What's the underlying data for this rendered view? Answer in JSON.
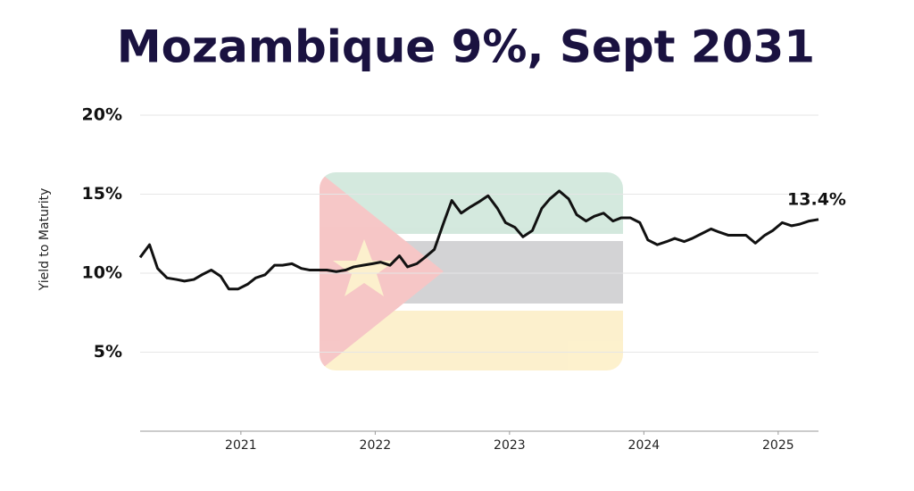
{
  "chart_data": {
    "type": "line",
    "title": "Mozambique 9%, Sept 2031",
    "y_label": "Yield to Maturity",
    "x": [
      2020.25,
      2020.32,
      2020.38,
      2020.45,
      2020.52,
      2020.58,
      2020.65,
      2020.71,
      2020.78,
      2020.85,
      2020.91,
      2020.98,
      2021.05,
      2021.11,
      2021.18,
      2021.25,
      2021.31,
      2021.38,
      2021.45,
      2021.51,
      2021.58,
      2021.64,
      2021.71,
      2021.78,
      2021.84,
      2021.91,
      2021.98,
      2022.04,
      2022.11,
      2022.18,
      2022.24,
      2022.31,
      2022.37,
      2022.44,
      2022.51,
      2022.57,
      2022.64,
      2022.71,
      2022.77,
      2022.84,
      2022.91,
      2022.97,
      2023.04,
      2023.1,
      2023.17,
      2023.24,
      2023.3,
      2023.37,
      2023.44,
      2023.5,
      2023.57,
      2023.63,
      2023.7,
      2023.77,
      2023.83,
      2023.9,
      2023.97,
      2024.03,
      2024.1,
      2024.17,
      2024.23,
      2024.3,
      2024.36,
      2024.43,
      2024.5,
      2024.56,
      2024.63,
      2024.7,
      2024.76,
      2024.83,
      2024.9,
      2024.96,
      2025.03,
      2025.1,
      2025.16,
      2025.23,
      2025.3
    ],
    "series": [
      {
        "name": "Yield to Maturity",
        "color": "#111111",
        "values": [
          11.0,
          11.8,
          10.3,
          9.7,
          9.6,
          9.5,
          9.6,
          9.9,
          10.2,
          9.8,
          9.0,
          9.0,
          9.3,
          9.7,
          9.9,
          10.5,
          10.5,
          10.6,
          10.3,
          10.2,
          10.2,
          10.2,
          10.1,
          10.2,
          10.4,
          10.5,
          10.6,
          10.7,
          10.5,
          11.1,
          10.4,
          10.6,
          11.0,
          11.5,
          13.2,
          14.6,
          13.8,
          14.2,
          14.5,
          14.9,
          14.1,
          13.2,
          12.9,
          12.3,
          12.7,
          14.1,
          14.7,
          15.2,
          14.7,
          13.7,
          13.3,
          13.6,
          13.8,
          13.3,
          13.5,
          13.5,
          13.2,
          12.1,
          11.8,
          12.0,
          12.2,
          12.0,
          12.2,
          12.5,
          12.8,
          12.6,
          12.4,
          12.4,
          12.4,
          11.9,
          12.4,
          12.7,
          13.2,
          13.0,
          13.1,
          13.3,
          13.4
        ]
      }
    ],
    "xlim": [
      2020.25,
      2025.3
    ],
    "xticks": [
      2021,
      2022,
      2023,
      2024,
      2025
    ],
    "ylim": [
      0,
      20
    ],
    "yticks": [
      {
        "value": 5,
        "label": "5%"
      },
      {
        "value": 10,
        "label": "10%"
      },
      {
        "value": 15,
        "label": "15%"
      },
      {
        "value": 20,
        "label": "20%"
      }
    ],
    "grid": true,
    "annotations": [
      {
        "text": "13.4%",
        "x": 2025.3,
        "y": 13.4
      }
    ]
  }
}
